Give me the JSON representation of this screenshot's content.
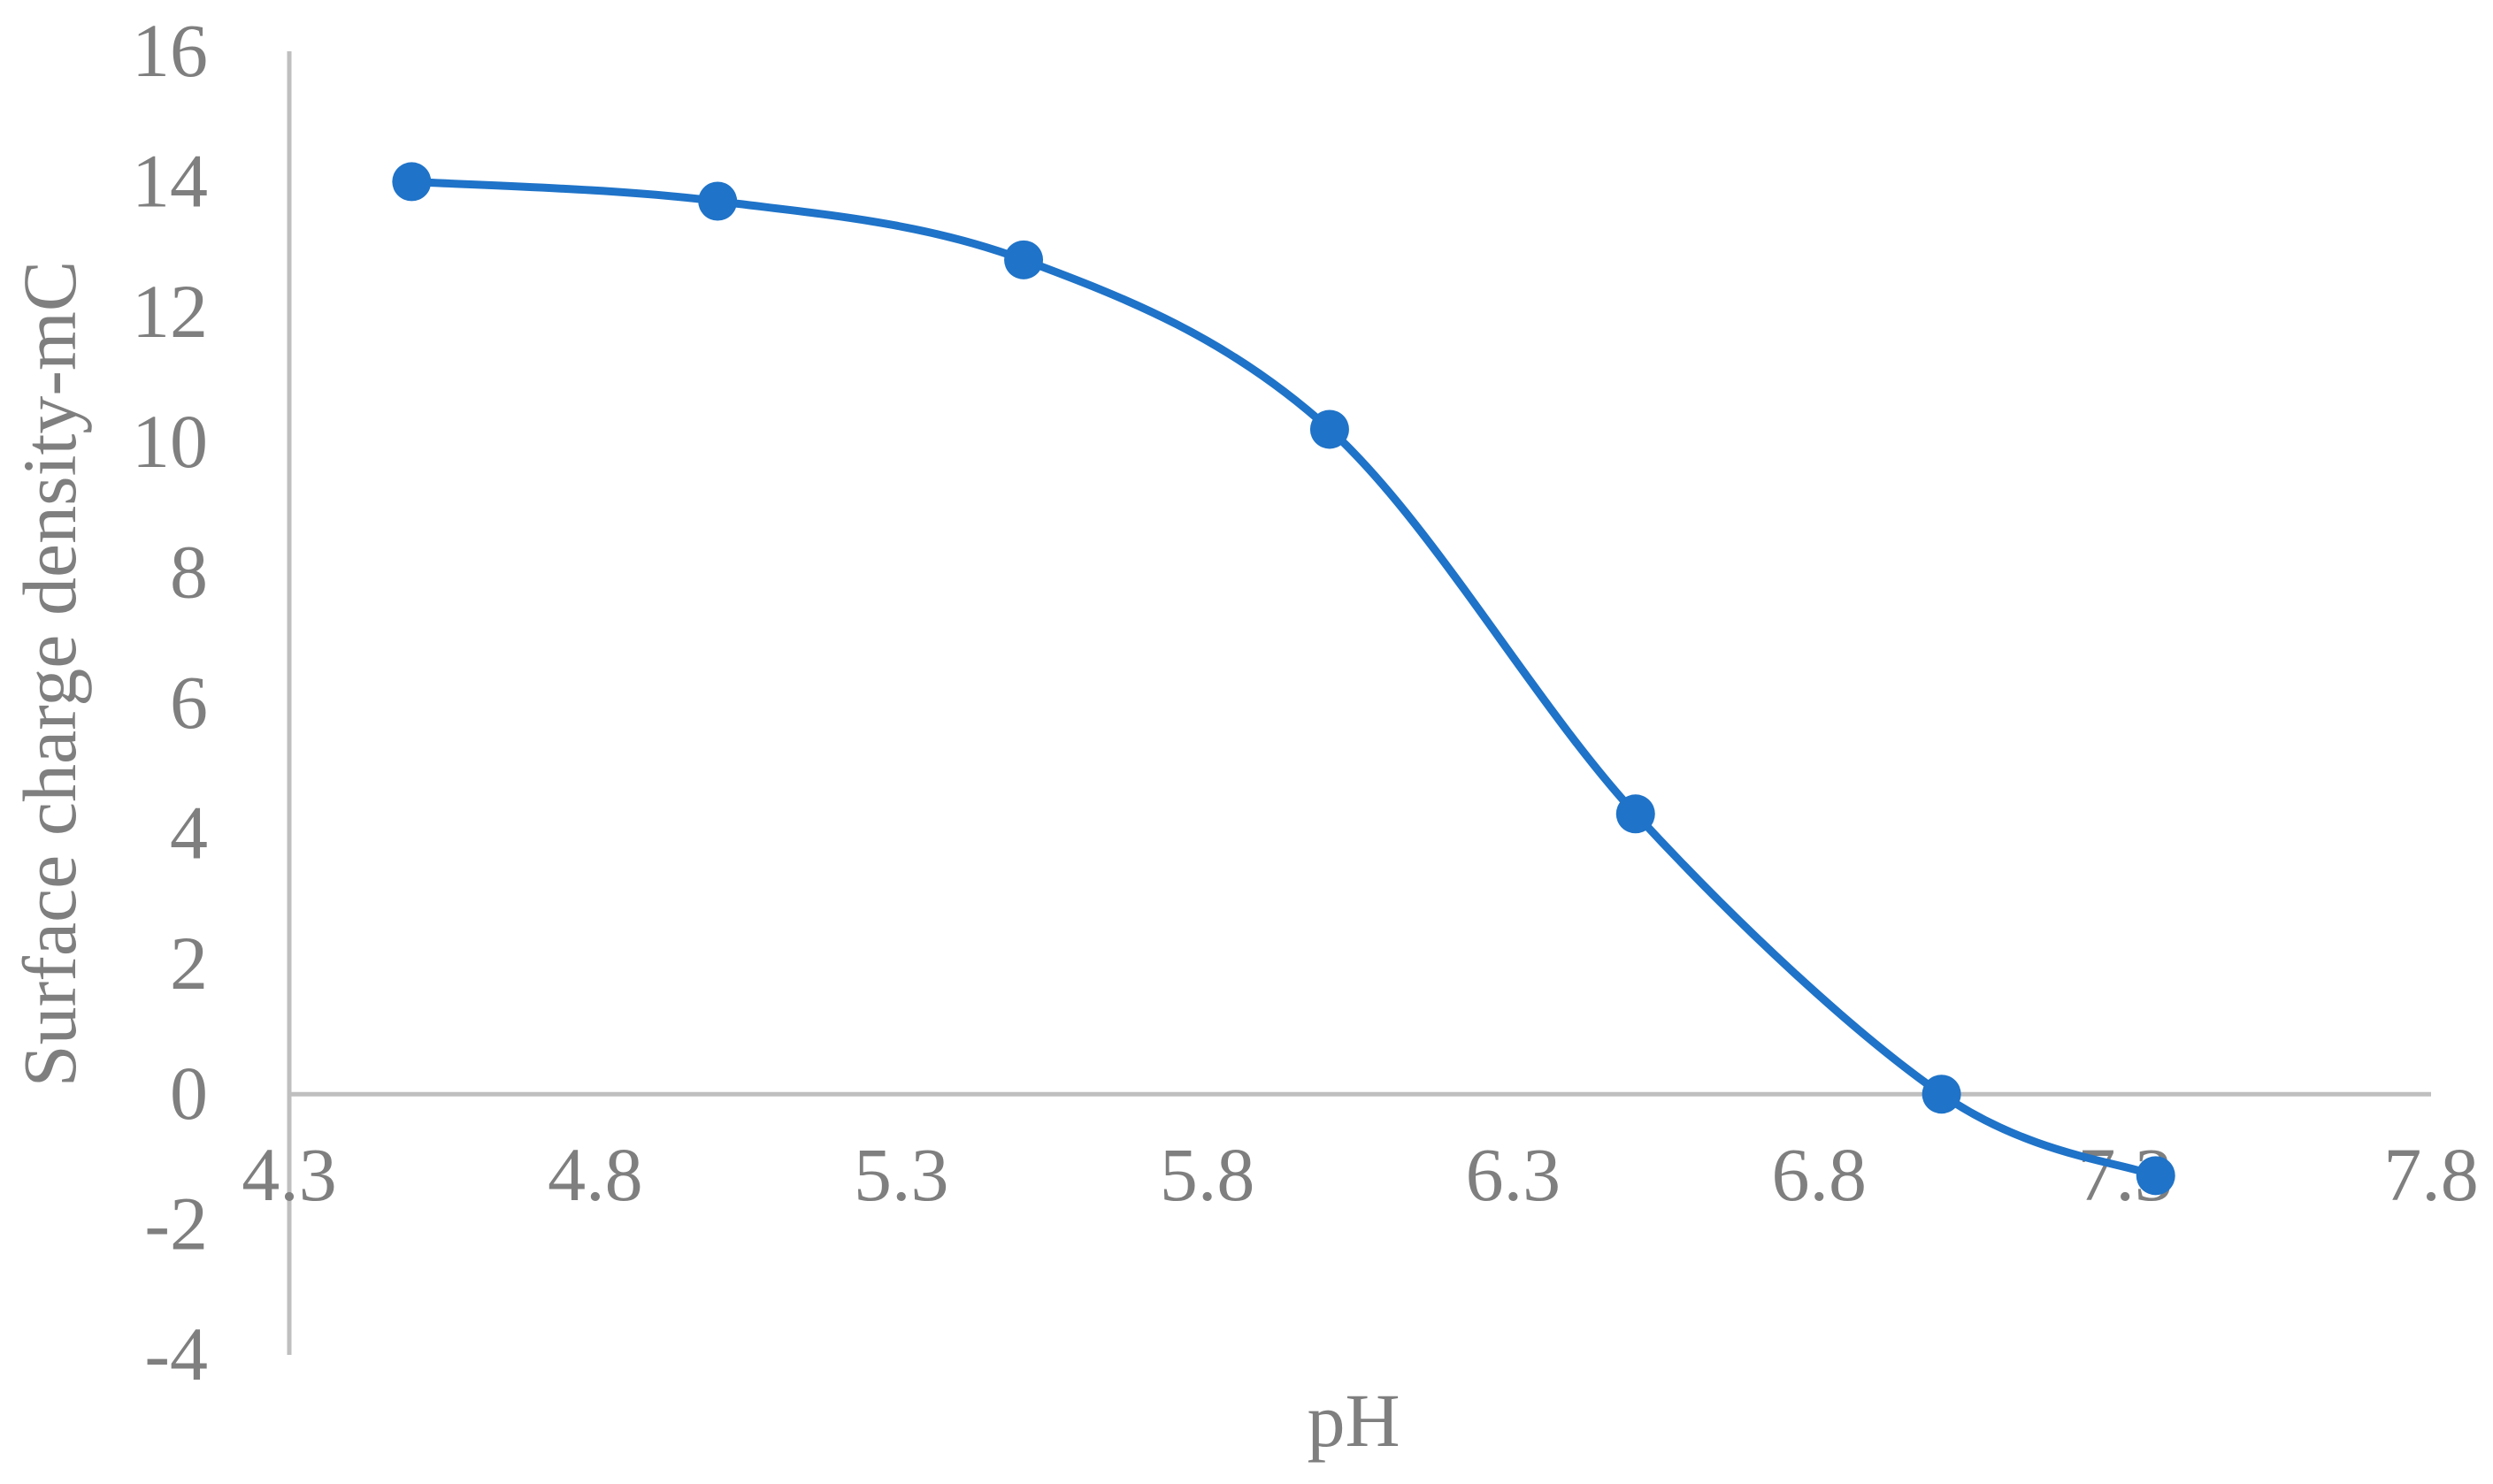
{
  "chart_data": {
    "type": "line",
    "title": "",
    "xlabel": "pH",
    "ylabel": "Surface charge density-mC",
    "xlim": [
      4.3,
      7.8
    ],
    "ylim": [
      -4,
      16
    ],
    "x_ticks": [
      "4.3",
      "4.8",
      "5.3",
      "5.8",
      "6.3",
      "6.8",
      "7.3",
      "7.8"
    ],
    "y_ticks": [
      "-4",
      "-2",
      "0",
      "2",
      "4",
      "6",
      "8",
      "10",
      "12",
      "14",
      "16"
    ],
    "grid": false,
    "legend": "none",
    "smooth": true,
    "series": [
      {
        "color": "#1f73c8",
        "marker": "circle",
        "x": [
          4.5,
          5.0,
          5.5,
          6.0,
          6.5,
          7.0,
          7.35
        ],
        "y": [
          14.0,
          13.7,
          12.8,
          10.2,
          4.3,
          0.0,
          -1.25
        ]
      }
    ],
    "axis_color": "#bfbfbf",
    "text_color": "#7f7f7f"
  }
}
